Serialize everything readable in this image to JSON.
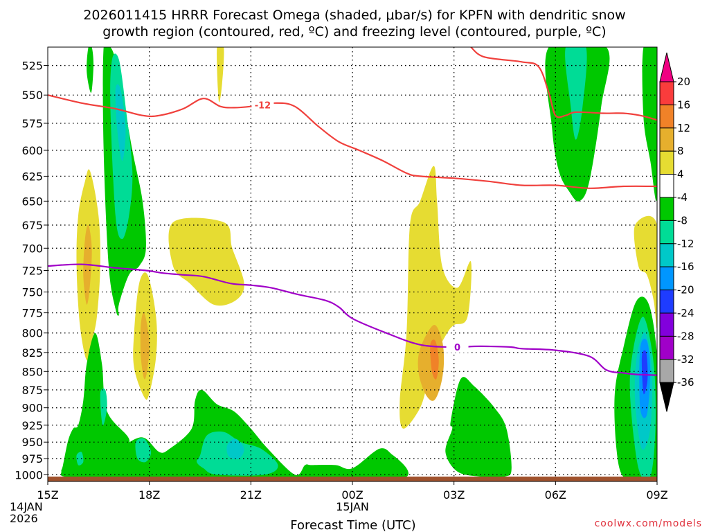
{
  "chart_data": {
    "type": "heatmap",
    "title_line1": "2026011415 HRRR Forecast Omega (shaded, μbar/s) for KPFN with dendritic snow",
    "title_line2": "growth region (contoured, red, ºC) and freezing level (contoured, purple, ºC)",
    "xlabel": "Forecast Time (UTC)",
    "credit": "coolwx.com/models",
    "y_levels": [
      525,
      550,
      575,
      600,
      625,
      650,
      675,
      700,
      725,
      750,
      775,
      800,
      825,
      850,
      875,
      900,
      925,
      950,
      975,
      1000
    ],
    "y_tick_labels": [
      "525",
      "550",
      "575",
      "600",
      "625",
      "650",
      "675",
      "700",
      "725",
      "750",
      "775",
      "800",
      "825",
      "850",
      "875",
      "900",
      "925",
      "950",
      "975",
      "1000"
    ],
    "x_hours": [
      0,
      3,
      6,
      9,
      12,
      15,
      18
    ],
    "x_tick_labels": [
      [
        "15Z",
        "14JAN",
        "2026"
      ],
      [
        "18Z"
      ],
      [
        "21Z"
      ],
      [
        "00Z",
        "15JAN"
      ],
      [
        "03Z"
      ],
      [
        "06Z"
      ],
      [
        "09Z"
      ]
    ],
    "colorbar": {
      "levels": [
        -36,
        -32,
        -28,
        -24,
        -20,
        -16,
        -12,
        -8,
        -4,
        4,
        8,
        12,
        16,
        20
      ],
      "tick_labels": [
        "20",
        "16",
        "12",
        "8",
        "4",
        "-4",
        "-8",
        "-12",
        "-16",
        "-20",
        "-24",
        "-28",
        "-32",
        "-36"
      ],
      "colors": [
        "#000000",
        "#a8a8a8",
        "#a000c8",
        "#8200dc",
        "#1e3cff",
        "#0096ff",
        "#00c8c8",
        "#00dc96",
        "#00c800",
        "#ffffff",
        "#e6dc32",
        "#e6af2d",
        "#f08228",
        "#fa3c3c",
        "#f00082"
      ],
      "bin_labels": [
        "<-36",
        "-36..-32",
        "-32..-28",
        "-28..-24",
        "-24..-20",
        "-20..-16",
        "-16..-12",
        "-12..-8",
        "-8..-4",
        "-4..4",
        "4..8",
        "8..12",
        "12..16",
        "16..20",
        ">20"
      ]
    },
    "omega_features": [
      {
        "name": "green-plume-18z",
        "t": [
          1.65,
          1.85,
          2.0,
          2.15,
          2.5,
          2.8,
          2.9,
          2.7,
          2.4,
          2.1,
          2.1,
          2.0,
          1.8,
          1.65
        ],
        "p": [
          510,
          510,
          520,
          540,
          600,
          650,
          700,
          720,
          730,
          765,
          778,
          770,
          720,
          600
        ],
        "value": -6
      },
      {
        "name": "teal-core-18z",
        "t": [
          1.9,
          2.1,
          2.3,
          2.5,
          2.4,
          2.2,
          2.0,
          1.85
        ],
        "p": [
          520,
          520,
          560,
          620,
          665,
          690,
          665,
          560
        ],
        "value": -10
      },
      {
        "name": "cyan-core-18z",
        "t": [
          2.0,
          2.15,
          2.3,
          2.2,
          2.05
        ],
        "p": [
          545,
          545,
          580,
          610,
          580
        ],
        "value": -14
      },
      {
        "name": "green-top-1630z",
        "t": [
          1.2,
          1.3,
          1.35,
          1.28,
          1.15
        ],
        "p": [
          510,
          510,
          525,
          548,
          530
        ],
        "value": -6
      },
      {
        "name": "yellow-top-2030z",
        "t": [
          5.0,
          5.2,
          5.15,
          5.05
        ],
        "p": [
          510,
          510,
          540,
          555
        ],
        "value": 6
      },
      {
        "name": "yellow-1630z",
        "t": [
          0.9,
          1.1,
          1.25,
          1.5,
          1.55,
          1.45,
          1.3,
          1.15,
          0.95,
          0.85
        ],
        "p": [
          665,
          630,
          620,
          665,
          720,
          780,
          810,
          835,
          790,
          720
        ],
        "value": 6
      },
      {
        "name": "orange-1630z",
        "t": [
          1.1,
          1.2,
          1.3,
          1.25,
          1.15,
          1.05
        ],
        "p": [
          690,
          675,
          700,
          740,
          765,
          730
        ],
        "value": 10
      },
      {
        "name": "yellow-19z",
        "t": [
          2.55,
          2.7,
          2.95,
          3.2,
          3.2,
          3.0,
          2.85,
          2.55
        ],
        "p": [
          800,
          740,
          730,
          780,
          830,
          880,
          885,
          845
        ],
        "value": 6
      },
      {
        "name": "orange-19z",
        "t": [
          2.75,
          2.85,
          3.0,
          2.95,
          2.85,
          2.75
        ],
        "p": [
          790,
          775,
          810,
          845,
          860,
          830
        ],
        "value": 10
      },
      {
        "name": "yellow-2245z",
        "t": [
          3.7,
          5.2,
          5.45,
          5.8,
          5.55,
          4.9,
          4.2,
          3.7
        ],
        "p": [
          672,
          672,
          700,
          740,
          760,
          765,
          740,
          720
        ],
        "value": 6
      },
      {
        "name": "yellow-04z",
        "t": [
          10.7,
          11.0,
          11.4,
          11.5,
          11.65,
          12.1,
          12.5,
          12.4,
          12.0,
          11.8,
          11.5,
          11.25,
          11.0,
          10.5,
          10.4,
          10.6
        ],
        "p": [
          675,
          650,
          615,
          650,
          720,
          745,
          715,
          780,
          790,
          800,
          825,
          860,
          900,
          930,
          890,
          800
        ],
        "value": 6
      },
      {
        "name": "orange-04z",
        "t": [
          11.0,
          11.4,
          11.65,
          11.7,
          11.6,
          11.4,
          11.15,
          10.95
        ],
        "p": [
          820,
          790,
          810,
          840,
          870,
          890,
          880,
          850
        ],
        "value": 10
      },
      {
        "name": "darkorange-04z",
        "t": [
          11.3,
          11.45,
          11.55,
          11.48,
          11.35
        ],
        "p": [
          815,
          810,
          835,
          860,
          850
        ],
        "value": 14
      },
      {
        "name": "yellow-right-edge",
        "t": [
          17.35,
          18.0,
          18.0,
          17.9,
          17.7,
          17.45
        ],
        "p": [
          675,
          675,
          790,
          760,
          730,
          720
        ],
        "value": 6
      },
      {
        "name": "yellow-sliver-0710z",
        "t": [
          16.85,
          16.95,
          16.95,
          16.85
        ],
        "p": [
          915,
          910,
          950,
          960
        ],
        "value": 6
      },
      {
        "name": "green-top-0530z",
        "t": [
          14.8,
          16.5,
          16.35,
          16.0,
          15.7,
          15.4,
          15.1,
          14.9
        ],
        "p": [
          510,
          510,
          560,
          630,
          650,
          640,
          620,
          580
        ],
        "value": -6
      },
      {
        "name": "teal-top-0530z",
        "t": [
          15.3,
          15.9,
          15.8,
          15.6,
          15.45
        ],
        "p": [
          510,
          510,
          560,
          590,
          560
        ],
        "value": -10
      },
      {
        "name": "green-right-top",
        "t": [
          17.6,
          18.0,
          18.0,
          17.8,
          17.6
        ],
        "p": [
          510,
          510,
          645,
          610,
          570
        ],
        "value": -6
      },
      {
        "name": "green-right-bottom",
        "t": [
          17.0,
          17.4,
          17.8,
          18.05,
          18.05,
          17.8,
          17.5,
          17.0,
          16.8,
          16.75
        ],
        "p": [
          820,
          760,
          770,
          860,
          1003,
          1003,
          1003,
          1003,
          960,
          880
        ],
        "value": -6
      },
      {
        "name": "teal-right-bottom",
        "t": [
          17.3,
          17.6,
          17.9,
          17.95,
          17.8,
          17.45,
          17.2
        ],
        "p": [
          820,
          780,
          840,
          930,
          1003,
          990,
          880
        ],
        "value": -10
      },
      {
        "name": "cyan-right-bottom",
        "t": [
          17.4,
          17.65,
          17.85,
          17.8,
          17.55,
          17.35
        ],
        "p": [
          830,
          800,
          850,
          930,
          960,
          890
        ],
        "value": -14
      },
      {
        "name": "lightblue-right-bottom",
        "t": [
          17.5,
          17.7,
          17.8,
          17.7,
          17.5
        ],
        "p": [
          820,
          810,
          850,
          910,
          900
        ],
        "value": -18
      },
      {
        "name": "blue-right-bottom",
        "t": [
          17.55,
          17.68,
          17.72,
          17.6
        ],
        "p": [
          830,
          825,
          860,
          880
        ],
        "value": -22
      },
      {
        "name": "green-bottom-main",
        "t": [
          0.45,
          0.6,
          0.75,
          0.9,
          1.05,
          1.15,
          1.4,
          1.6,
          1.75,
          2.4,
          2.2,
          2.0,
          2.15,
          2.6,
          2.9,
          3.3,
          3.6,
          4.25,
          4.35,
          4.55,
          5.0,
          5.5,
          6.0,
          6.5,
          7.3,
          7.6,
          7.8,
          8.5,
          9.0,
          9.8,
          10.2,
          10.6,
          10.6,
          10.1,
          9.5,
          8.5,
          7.0,
          5.0,
          3.0,
          1.5,
          0.5,
          0.4
        ],
        "p": [
          985,
          948,
          930,
          925,
          890,
          840,
          800,
          840,
          905,
          945,
          965,
          970,
          960,
          945,
          945,
          965,
          960,
          930,
          890,
          875,
          895,
          905,
          930,
          960,
          1000,
          985,
          985,
          985,
          990,
          960,
          970,
          990,
          1003,
          1003,
          1003,
          1003,
          1003,
          1003,
          1003,
          1003,
          1003,
          995
        ],
        "value": -6
      },
      {
        "name": "green-0530z",
        "t": [
          11.9,
          12.2,
          12.6,
          13.2,
          13.55,
          13.7,
          13.5,
          12.8,
          12.1,
          11.75,
          11.95
        ],
        "p": [
          920,
          860,
          870,
          900,
          930,
          990,
          1003,
          1003,
          995,
          965,
          930
        ],
        "value": -6
      },
      {
        "name": "teal-bottom-2330z",
        "t": [
          4.5,
          4.7,
          5.2,
          5.7,
          6.3,
          6.8,
          6.4,
          5.0,
          4.6,
          4.4
        ],
        "p": [
          970,
          940,
          935,
          950,
          960,
          985,
          1000,
          1000,
          990,
          980
        ],
        "value": -10
      },
      {
        "name": "cyan-bottom-2330z",
        "t": [
          5.3,
          5.55,
          5.8,
          5.65,
          5.35
        ],
        "p": [
          955,
          945,
          960,
          975,
          972
        ],
        "value": -14
      },
      {
        "name": "teal-bottom-19z",
        "t": [
          2.6,
          2.85,
          3.05,
          2.9,
          2.65
        ],
        "p": [
          950,
          945,
          965,
          980,
          975
        ],
        "value": -10
      },
      {
        "name": "teal-bottom-17z",
        "t": [
          1.55,
          1.7,
          1.75,
          1.62
        ],
        "p": [
          880,
          875,
          900,
          925
        ],
        "value": -10
      },
      {
        "name": "teal-bottom-1630z",
        "t": [
          0.85,
          1.0,
          1.05,
          0.9
        ],
        "p": [
          970,
          965,
          980,
          985
        ],
        "value": -10
      }
    ],
    "contours": [
      {
        "name": "dgz-minus12-left",
        "color": "#f0403c",
        "label": "-12",
        "t": [
          0,
          1.0,
          2.0,
          2.8,
          3.3,
          4.0,
          4.6,
          5.1,
          5.5,
          6.0,
          6.7,
          7.3,
          8.0,
          8.6,
          9.2,
          9.9,
          10.6,
          11.0,
          12.0,
          13.0,
          14.0,
          15.0,
          16.0,
          17.0,
          18.0
        ],
        "p": [
          550,
          557,
          562,
          568,
          568,
          562,
          553,
          560,
          561,
          560,
          557,
          560,
          578,
          592,
          600,
          610,
          622,
          625,
          627,
          630,
          634,
          634,
          637,
          635,
          635
        ],
        "label_t": 6.35
      },
      {
        "name": "dgz-minus12-right",
        "color": "#f0403c",
        "t": [
          12.5,
          12.9,
          14.0,
          14.5,
          14.8,
          15.0,
          15.3,
          15.6,
          16.4,
          17.0,
          17.5,
          18.0
        ],
        "p": [
          510,
          518,
          522,
          526,
          548,
          568,
          568,
          565,
          566,
          566,
          568,
          572
        ],
        "label_t": null
      },
      {
        "name": "freezing-level-0",
        "color": "#a000c8",
        "label": "0",
        "t": [
          0,
          1.0,
          2.0,
          2.9,
          3.4,
          4.0,
          4.6,
          5.4,
          6.0,
          6.6,
          7.4,
          8.2,
          8.6,
          9.0,
          10.0,
          11.0,
          12.0,
          12.6,
          13.0,
          13.7,
          14.0,
          15.0,
          16.0,
          16.5,
          17.0,
          17.4,
          18.0
        ],
        "p": [
          720,
          718,
          722,
          725,
          728,
          730,
          732,
          740,
          742,
          745,
          753,
          760,
          768,
          782,
          800,
          815,
          818,
          817,
          817,
          818,
          820,
          822,
          830,
          848,
          852,
          854,
          855
        ],
        "label_t": 12.1
      }
    ]
  }
}
